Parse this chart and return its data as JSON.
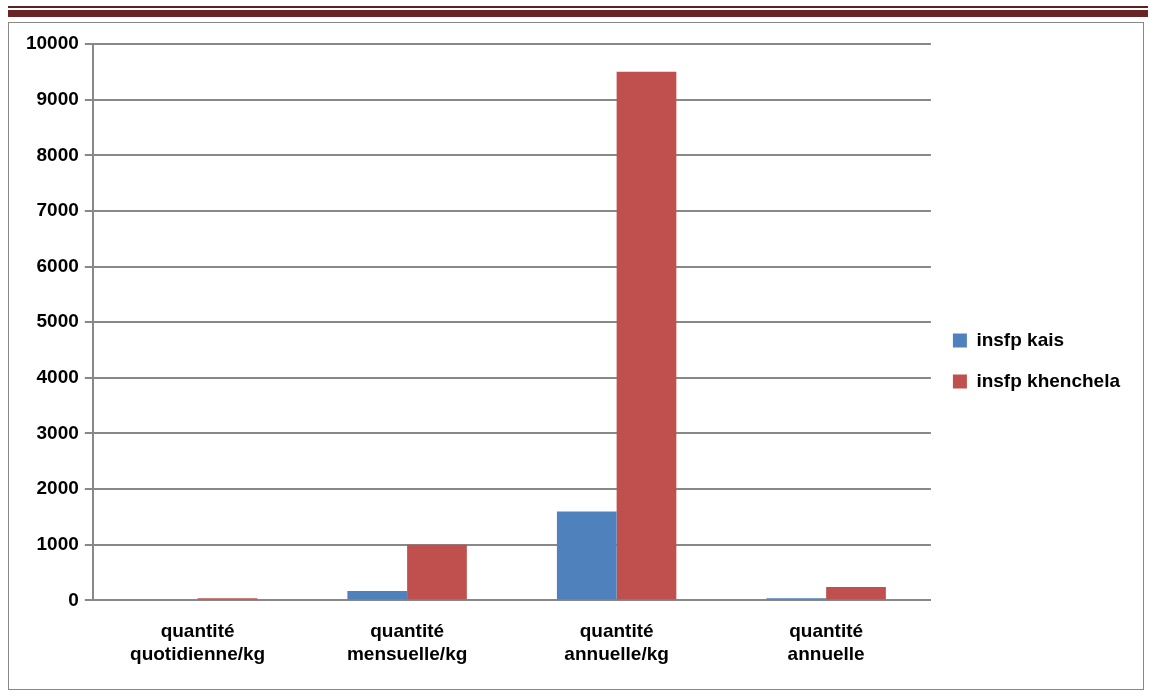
{
  "chart_data": {
    "type": "bar",
    "categories": [
      "quantité quotidienne/kg",
      "quantité mensuelle/kg",
      "quantité annuelle/kg",
      "quantité annuelle"
    ],
    "series": [
      {
        "name": "insfp kais",
        "color": "#4f81bd",
        "values": [
          0,
          170,
          1600,
          40
        ]
      },
      {
        "name": "insfp khenchela",
        "color": "#c0504d",
        "values": [
          40,
          1000,
          9500,
          240
        ]
      }
    ],
    "ylim": [
      0,
      10000
    ],
    "yticks": [
      0,
      1000,
      2000,
      3000,
      4000,
      5000,
      6000,
      7000,
      8000,
      9000,
      10000
    ],
    "grid": "y",
    "legend": "right"
  }
}
